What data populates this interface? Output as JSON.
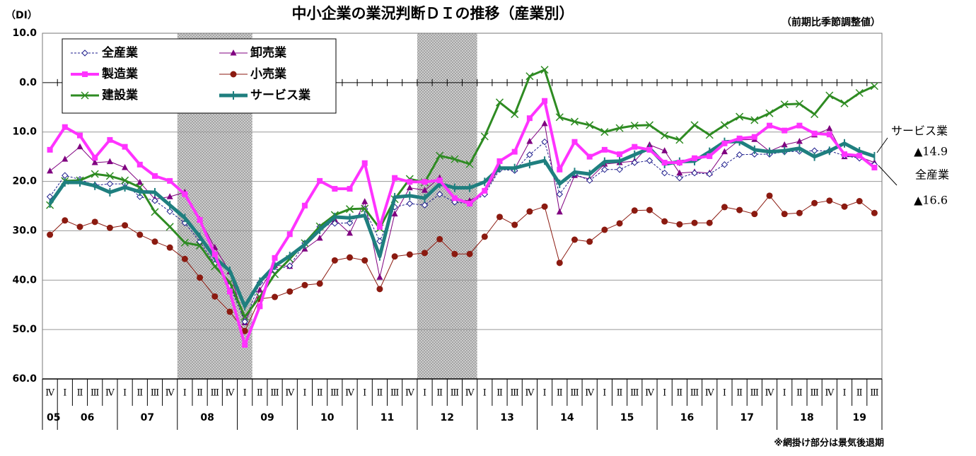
{
  "chart_data": {
    "type": "line",
    "title": "中小企業の業況判断ＤＩの推移（産業別）",
    "y_unit": "（DI）",
    "subtitle": "（前期比季節調整値）",
    "note": "※網掛け部分は景気後退期",
    "annotations": [
      "サービス業",
      "▲14.9",
      "全産業",
      "▲16.6"
    ],
    "categories": [
      "Ⅳ",
      "Ⅰ",
      "Ⅱ",
      "Ⅲ",
      "Ⅳ",
      "Ⅰ",
      "Ⅱ",
      "Ⅲ",
      "Ⅳ",
      "Ⅰ",
      "Ⅱ",
      "Ⅲ",
      "Ⅳ",
      "Ⅰ",
      "Ⅱ",
      "Ⅲ",
      "Ⅳ",
      "Ⅰ",
      "Ⅱ",
      "Ⅲ",
      "Ⅳ",
      "Ⅰ",
      "Ⅱ",
      "Ⅲ",
      "Ⅳ",
      "Ⅰ",
      "Ⅱ",
      "Ⅲ",
      "Ⅳ",
      "Ⅰ",
      "Ⅱ",
      "Ⅲ",
      "Ⅳ",
      "Ⅰ",
      "Ⅱ",
      "Ⅲ",
      "Ⅳ",
      "Ⅰ",
      "Ⅱ",
      "Ⅲ",
      "Ⅳ",
      "Ⅰ",
      "Ⅱ",
      "Ⅲ",
      "Ⅳ",
      "Ⅰ",
      "Ⅱ",
      "Ⅲ",
      "Ⅳ",
      "Ⅰ",
      "Ⅱ",
      "Ⅲ",
      "Ⅳ",
      "Ⅰ",
      "Ⅱ",
      "Ⅲ"
    ],
    "years": [
      "05",
      "06",
      "07",
      "08",
      "09",
      "10",
      "11",
      "12",
      "13",
      "14",
      "15",
      "16",
      "17",
      "18",
      "19"
    ],
    "ylim": [
      -60,
      10
    ],
    "yticks": [
      {
        "value": 10,
        "label": "10.0"
      },
      {
        "value": 0,
        "label": "0.0"
      },
      {
        "value": -10,
        "label": "10.0"
      },
      {
        "value": -20,
        "label": "20.0"
      },
      {
        "value": -30,
        "label": "30.0"
      },
      {
        "value": -40,
        "label": "40.0"
      },
      {
        "value": -50,
        "label": "50.0"
      },
      {
        "value": -60,
        "label": "60.0"
      }
    ],
    "grid": true,
    "series": [
      {
        "name": "全産業",
        "color": "#1c1c8c",
        "values": [
          -23.1,
          -18.8,
          -19.6,
          -20.8,
          -20.5,
          -20.5,
          -23.1,
          -23.9,
          -26.1,
          -28.4,
          -32.2,
          -36.7,
          -41.1,
          -48.4,
          -40.5,
          -38.0,
          -37.1,
          -32.5,
          -29.2,
          -28.5,
          -28.4,
          -25.6,
          -32.1,
          -25.2,
          -24.5,
          -24.8,
          -22.6,
          -24.2,
          -24.5,
          -22.6,
          -17.6,
          -17.8,
          -14.6,
          -12.0,
          -22.6,
          -18.5,
          -19.8,
          -17.6,
          -17.6,
          -16.2,
          -15.8,
          -18.3,
          -19.3,
          -18.3,
          -18.5,
          -16.6,
          -14.6,
          -14.5,
          -14.5,
          -14.0,
          -13.9,
          -13.8,
          -13.8,
          -14.8,
          -15.3,
          -16.6
        ]
      },
      {
        "name": "製造業",
        "color": "#ff33ff",
        "values": [
          -13.6,
          -9.0,
          -10.7,
          -15.2,
          -11.6,
          -13.0,
          -16.6,
          -18.9,
          -19.9,
          -22.6,
          -27.8,
          -34.8,
          -42.3,
          -53.1,
          -45.3,
          -35.5,
          -30.7,
          -24.9,
          -19.9,
          -21.5,
          -21.5,
          -16.3,
          -29.2,
          -19.3,
          -20.1,
          -20.1,
          -19.8,
          -23.4,
          -24.5,
          -21.9,
          -15.9,
          -14.0,
          -7.2,
          -3.7,
          -17.6,
          -12.0,
          -15.0,
          -13.6,
          -14.5,
          -13.0,
          -13.6,
          -16.2,
          -16.2,
          -15.3,
          -14.9,
          -12.3,
          -11.3,
          -11.0,
          -8.7,
          -9.7,
          -8.7,
          -10.3,
          -10.5,
          -14.5,
          -14.8,
          -17.2
        ]
      },
      {
        "name": "建設業",
        "color": "#2e8b22",
        "values": [
          -24.8,
          -19.9,
          -19.8,
          -18.5,
          -18.9,
          -19.8,
          -21.2,
          -26.2,
          -29.2,
          -32.4,
          -33.0,
          -37.2,
          -40.5,
          -47.4,
          -43.4,
          -38.8,
          -35.7,
          -32.5,
          -29.1,
          -26.8,
          -25.6,
          -25.5,
          -29.5,
          -23.6,
          -19.5,
          -20.2,
          -14.8,
          -15.5,
          -16.5,
          -10.9,
          -4.0,
          -6.4,
          1.3,
          2.6,
          -7.0,
          -7.9,
          -8.6,
          -10.0,
          -9.2,
          -8.7,
          -8.6,
          -10.7,
          -11.6,
          -8.6,
          -10.6,
          -8.6,
          -6.9,
          -7.6,
          -6.2,
          -4.4,
          -4.3,
          -6.4,
          -2.6,
          -4.2,
          -2.1,
          -0.7
        ]
      },
      {
        "name": "卸売業",
        "color": "#800080",
        "values": [
          -17.9,
          -15.5,
          -13.0,
          -16.2,
          -16.0,
          -17.2,
          -20.2,
          -23.6,
          -23.1,
          -22.2,
          -27.7,
          -33.4,
          -38.3,
          -48.6,
          -42.0,
          -37.0,
          -37.2,
          -33.7,
          -31.5,
          -27.7,
          -30.5,
          -24.1,
          -39.4,
          -26.6,
          -21.3,
          -21.8,
          -19.3,
          -23.8,
          -23.9,
          -22.2,
          -17.2,
          -17.5,
          -11.9,
          -8.3,
          -26.2,
          -18.8,
          -19.5,
          -16.5,
          -16.2,
          -15.9,
          -12.6,
          -13.8,
          -18.3,
          -18.1,
          -18.3,
          -14.0,
          -11.6,
          -11.5,
          -13.9,
          -12.6,
          -11.9,
          -10.6,
          -9.3,
          -15.0,
          -15.0,
          -16.2
        ]
      },
      {
        "name": "小売業",
        "color": "#8b1a10",
        "values": [
          -30.8,
          -27.9,
          -29.2,
          -28.2,
          -29.4,
          -28.9,
          -30.8,
          -32.2,
          -33.4,
          -35.7,
          -39.5,
          -43.3,
          -46.4,
          -50.3,
          -43.8,
          -43.4,
          -42.3,
          -41.0,
          -40.7,
          -36.0,
          -35.4,
          -36.0,
          -41.8,
          -35.2,
          -34.8,
          -34.5,
          -31.7,
          -34.7,
          -34.7,
          -31.2,
          -27.2,
          -28.8,
          -26.1,
          -25.1,
          -36.5,
          -31.8,
          -32.2,
          -29.8,
          -28.5,
          -25.9,
          -25.8,
          -28.1,
          -28.7,
          -28.4,
          -28.4,
          -25.2,
          -25.8,
          -26.6,
          -22.9,
          -26.6,
          -26.4,
          -24.4,
          -23.9,
          -25.1,
          -24.0,
          -26.4
        ]
      },
      {
        "name": "サービス業",
        "color": "#1f7f7f",
        "values": [
          -24.5,
          -20.2,
          -20.2,
          -20.9,
          -22.2,
          -21.2,
          -22.1,
          -22.2,
          -24.8,
          -27.4,
          -31.2,
          -35.5,
          -38.1,
          -45.3,
          -40.3,
          -37.1,
          -35.1,
          -32.8,
          -29.8,
          -27.2,
          -27.4,
          -26.9,
          -35.2,
          -23.2,
          -22.9,
          -23.4,
          -20.5,
          -21.3,
          -21.3,
          -20.1,
          -17.3,
          -17.3,
          -16.5,
          -15.8,
          -20.5,
          -18.1,
          -18.5,
          -16.0,
          -15.9,
          -14.6,
          -13.3,
          -16.5,
          -16.0,
          -15.9,
          -14.0,
          -12.0,
          -11.9,
          -13.6,
          -14.0,
          -13.8,
          -13.3,
          -15.0,
          -13.8,
          -12.3,
          -13.9,
          -14.9
        ]
      }
    ]
  }
}
